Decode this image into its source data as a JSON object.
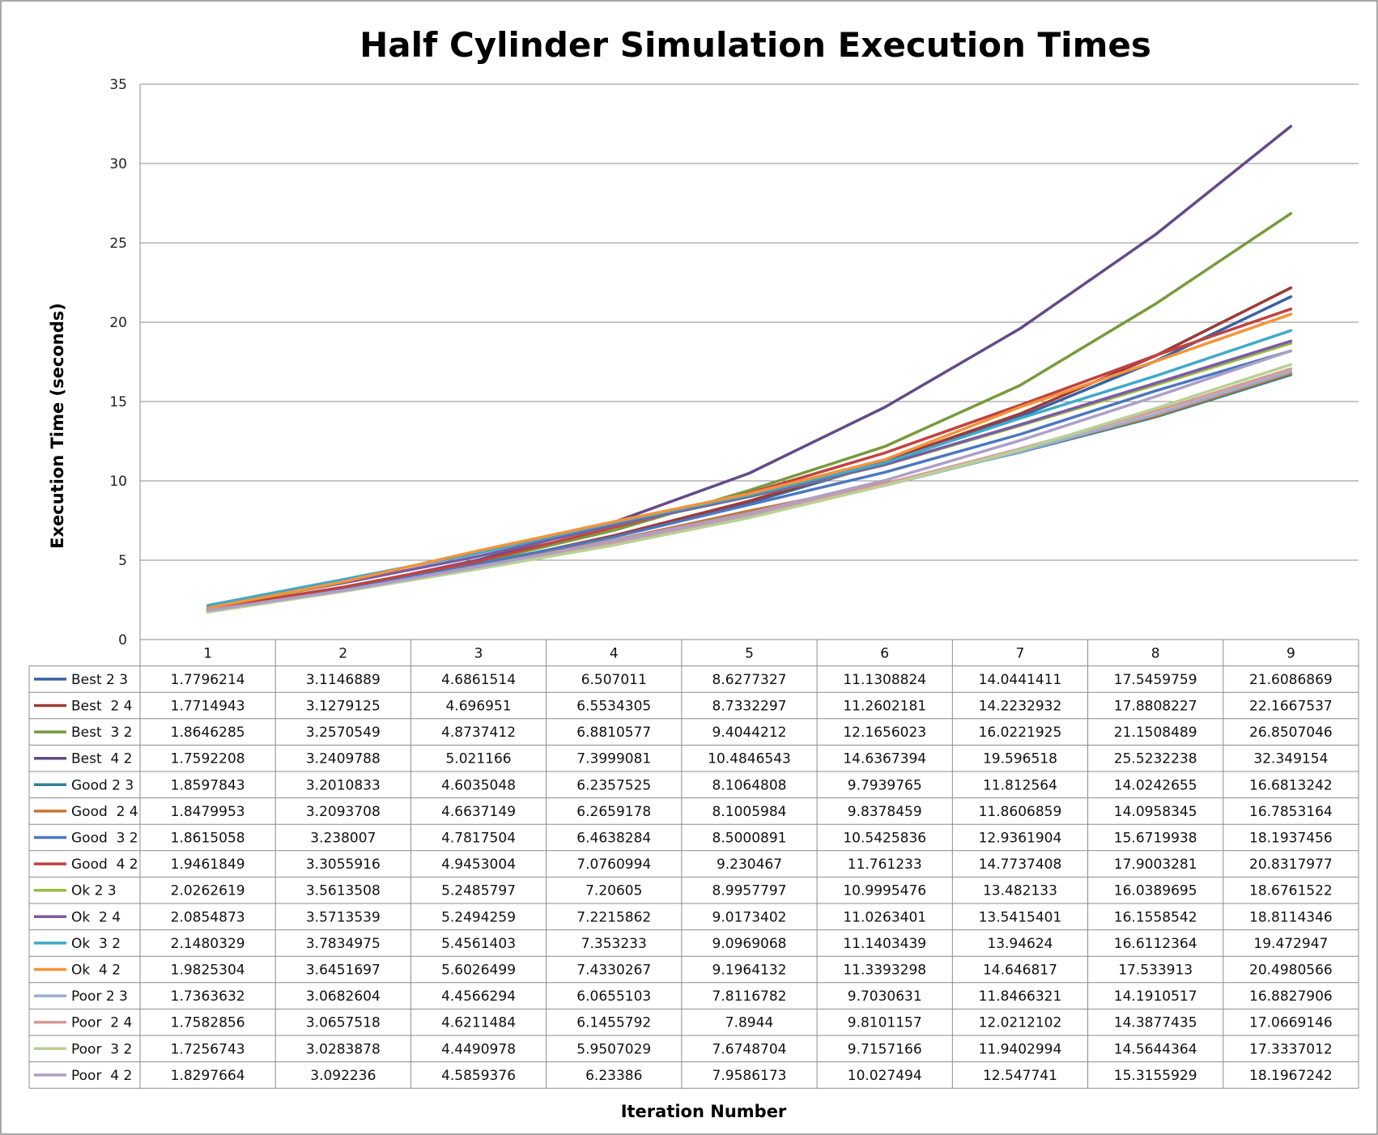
{
  "chart_data": {
    "type": "line",
    "title": "Half Cylinder Simulation Execution Times",
    "xlabel": "Iteration Number",
    "ylabel": "Execution Time (seconds)",
    "ylim": [
      0,
      35
    ],
    "yticks": [
      "0",
      "5",
      "10",
      "15",
      "20",
      "25",
      "30",
      "35"
    ],
    "grid": true,
    "legend": "data-table-below",
    "categories": [
      "1",
      "2",
      "3",
      "4",
      "5",
      "6",
      "7",
      "8",
      "9"
    ],
    "series": [
      {
        "name": "Best 2 3",
        "color": "#3a62a0",
        "labels": [
          "1.7796214",
          "3.1146889",
          "4.6861514",
          "6.507011",
          "8.6277327",
          "11.1308824",
          "14.0441411",
          "17.5459759",
          "21.6086869"
        ]
      },
      {
        "name": "Best  2 4",
        "color": "#9e3a38",
        "labels": [
          "1.7714943",
          "3.1279125",
          "4.696951",
          "6.5534305",
          "8.7332297",
          "11.2602181",
          "14.2232932",
          "17.8808227",
          "22.1667537"
        ]
      },
      {
        "name": "Best  3 2",
        "color": "#789a3c",
        "labels": [
          "1.8646285",
          "3.2570549",
          "4.8737412",
          "6.8810577",
          "9.4044212",
          "12.1656023",
          "16.0221925",
          "21.1508489",
          "26.8507046"
        ]
      },
      {
        "name": "Best  4 2",
        "color": "#644a87",
        "labels": [
          "1.7592208",
          "3.2409788",
          "5.021166",
          "7.3999081",
          "10.4846543",
          "14.6367394",
          "19.596518",
          "25.5232238",
          "32.349154"
        ]
      },
      {
        "name": "Good 2 3",
        "color": "#2f8197",
        "labels": [
          "1.8597843",
          "3.2010833",
          "4.6035048",
          "6.2357525",
          "8.1064808",
          "9.7939765",
          "11.812564",
          "14.0242655",
          "16.6813242"
        ]
      },
      {
        "name": "Good  2 4",
        "color": "#cc7332",
        "labels": [
          "1.8479953",
          "3.2093708",
          "4.6637149",
          "6.2659178",
          "8.1005984",
          "9.8378459",
          "11.8606859",
          "14.0958345",
          "16.7853164"
        ]
      },
      {
        "name": "Good  3 2",
        "color": "#4a77bf",
        "labels": [
          "1.8615058",
          "3.238007",
          "4.7817504",
          "6.4638284",
          "8.5000891",
          "10.5425836",
          "12.9361904",
          "15.6719938",
          "18.1937456"
        ]
      },
      {
        "name": "Good  4 2",
        "color": "#c2423f",
        "labels": [
          "1.9461849",
          "3.3055916",
          "4.9453004",
          "7.0760994",
          "9.230467",
          "11.761233",
          "14.7737408",
          "17.9003281",
          "20.8317977"
        ]
      },
      {
        "name": "Ok 2 3",
        "color": "#99bb3e",
        "labels": [
          "2.0262619",
          "3.5613508",
          "5.2485797",
          "7.20605",
          "8.9957797",
          "10.9995476",
          "13.482133",
          "16.0389695",
          "18.6761522"
        ]
      },
      {
        "name": "Ok  2 4",
        "color": "#7a5ba6",
        "labels": [
          "2.0854873",
          "3.5713539",
          "5.2494259",
          "7.2215862",
          "9.0173402",
          "11.0263401",
          "13.5415401",
          "16.1558542",
          "18.8114346"
        ]
      },
      {
        "name": "Ok  3 2",
        "color": "#3fa9c9",
        "labels": [
          "2.1480329",
          "3.7834975",
          "5.4561403",
          "7.353233",
          "9.0969068",
          "11.1403439",
          "13.94624",
          "16.6112364",
          "19.472947"
        ]
      },
      {
        "name": "Ok  4 2",
        "color": "#f59339",
        "labels": [
          "1.9825304",
          "3.6451697",
          "5.6026499",
          "7.4330267",
          "9.1964132",
          "11.3393298",
          "14.646817",
          "17.533913",
          "20.4980566"
        ]
      },
      {
        "name": "Poor 2 3",
        "color": "#9aafcf",
        "labels": [
          "1.7363632",
          "3.0682604",
          "4.4566294",
          "6.0655103",
          "7.8116782",
          "9.7030631",
          "11.8466321",
          "14.1910517",
          "16.8827906"
        ]
      },
      {
        "name": "Poor  2 4",
        "color": "#d79a98",
        "labels": [
          "1.7582856",
          "3.0657518",
          "4.6211484",
          "6.1455792",
          "7.8944",
          "9.8101157",
          "12.0212102",
          "14.3877435",
          "17.0669146"
        ]
      },
      {
        "name": "Poor  3 2",
        "color": "#b8d193",
        "labels": [
          "1.7256743",
          "3.0283878",
          "4.4490978",
          "5.9507029",
          "7.6748704",
          "9.7157166",
          "11.9402994",
          "14.5644364",
          "17.3337012"
        ]
      },
      {
        "name": "Poor  4 2",
        "color": "#ad9fc6",
        "labels": [
          "1.8297664",
          "3.092236",
          "4.5859376",
          "6.23386",
          "7.9586173",
          "10.027494",
          "12.547741",
          "15.3155929",
          "18.1967242"
        ]
      }
    ]
  }
}
